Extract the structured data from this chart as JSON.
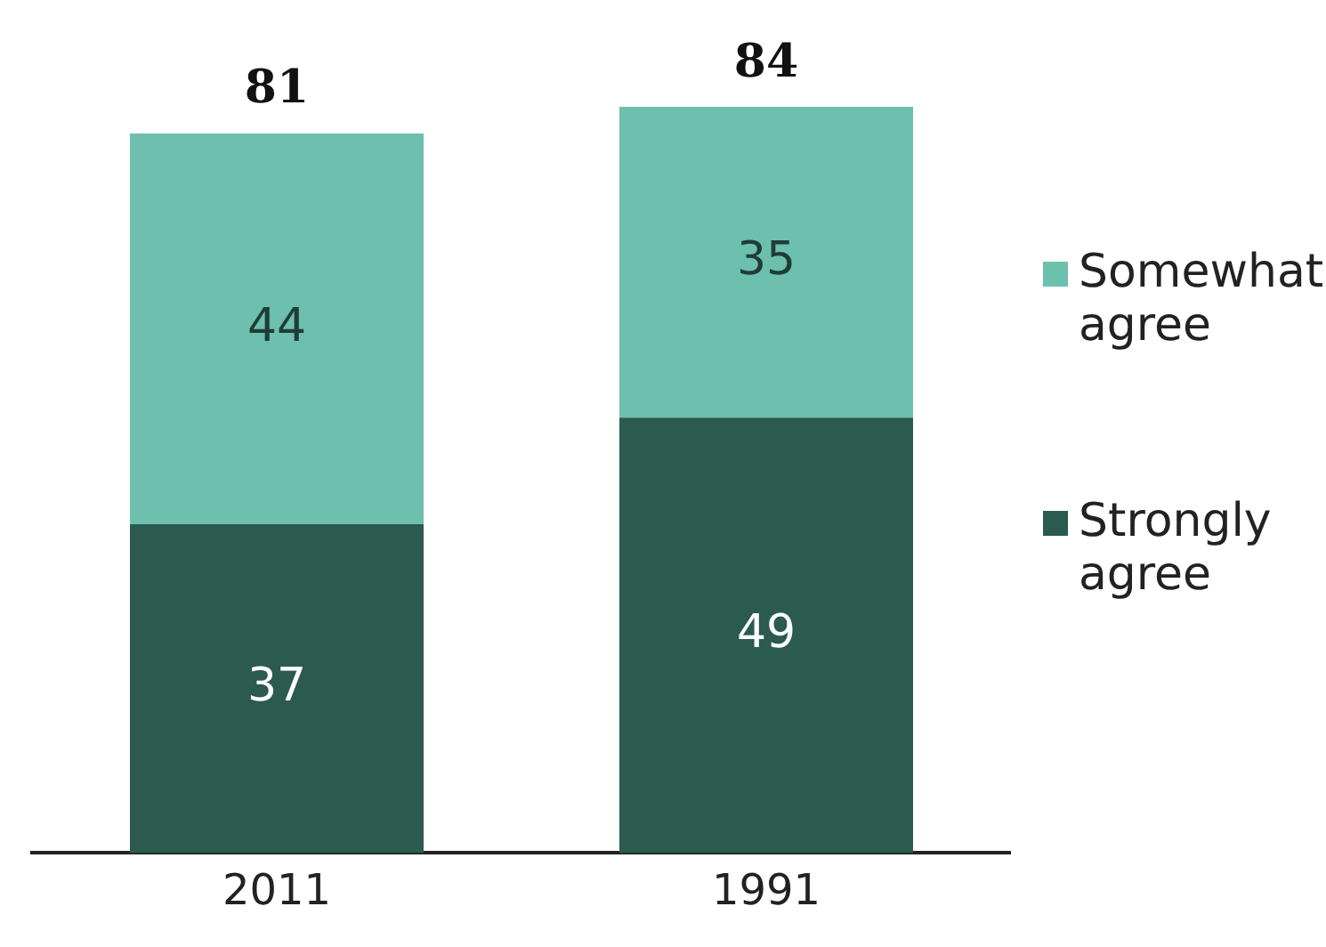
{
  "chart_data": {
    "type": "bar",
    "categories": [
      "2011",
      "1991"
    ],
    "stacked": true,
    "data_labels": true,
    "legend": "right",
    "series": [
      {
        "name": "Strongly agree",
        "color": "#2b5a4e",
        "values": [
          37,
          49
        ]
      },
      {
        "name": "Somewhat agree",
        "color": "#6dbfae",
        "values": [
          44,
          35
        ]
      }
    ],
    "totals": [
      "81",
      "84"
    ]
  }
}
